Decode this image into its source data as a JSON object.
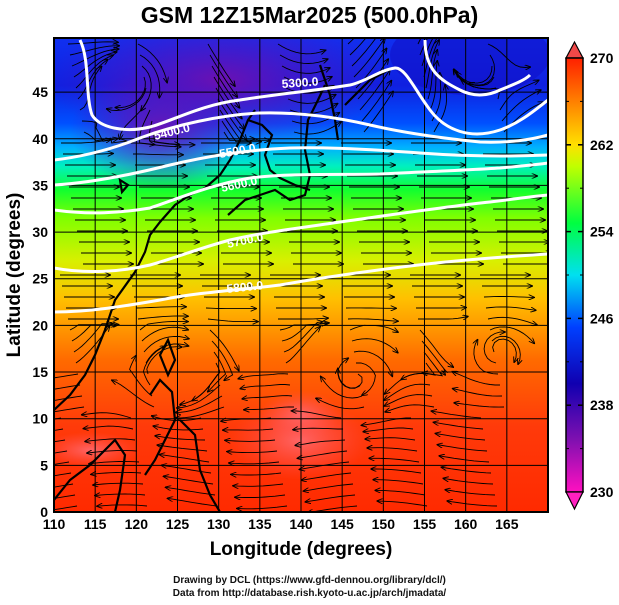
{
  "title": "GSM 12Z15Mar2025 (500.0hPa)",
  "credits": {
    "line1": "Drawing by DCL (https://www.gfd-dennou.org/library/dcl/)",
    "line2": "Data from http://database.rish.kyoto-u.ac.jp/arch/jmadata/"
  },
  "map": {
    "xlabel": "Longitude (degrees)",
    "ylabel": "Latitude  (degrees)",
    "lon_range": [
      110,
      170
    ],
    "lat_range": [
      0,
      50.8
    ],
    "lon_ticks": [
      "110",
      "115",
      "120",
      "125",
      "130",
      "135",
      "140",
      "145",
      "150",
      "155",
      "160",
      "165"
    ],
    "lat_ticks": [
      "0",
      "5",
      "10",
      "15",
      "20",
      "25",
      "30",
      "35",
      "40",
      "45"
    ],
    "contours": [
      {
        "label": "5300.0"
      },
      {
        "label": "5400.0"
      },
      {
        "label": "5500.0"
      },
      {
        "label": "5600.0"
      },
      {
        "label": "5700.0"
      },
      {
        "label": "5800.0"
      }
    ]
  },
  "colorbar": {
    "range": [
      230,
      270
    ],
    "ticks": [
      "270",
      "262",
      "254",
      "246",
      "238",
      "230"
    ],
    "colors": [
      "#ff00cc",
      "#8000b0",
      "#1000c0",
      "#0040ff",
      "#00d8ff",
      "#00ff60",
      "#90ff00",
      "#ffe000",
      "#ff8000",
      "#ff3000",
      "#ff1010"
    ],
    "over_color": "#f04848",
    "under_color": "#ff20c0"
  }
}
